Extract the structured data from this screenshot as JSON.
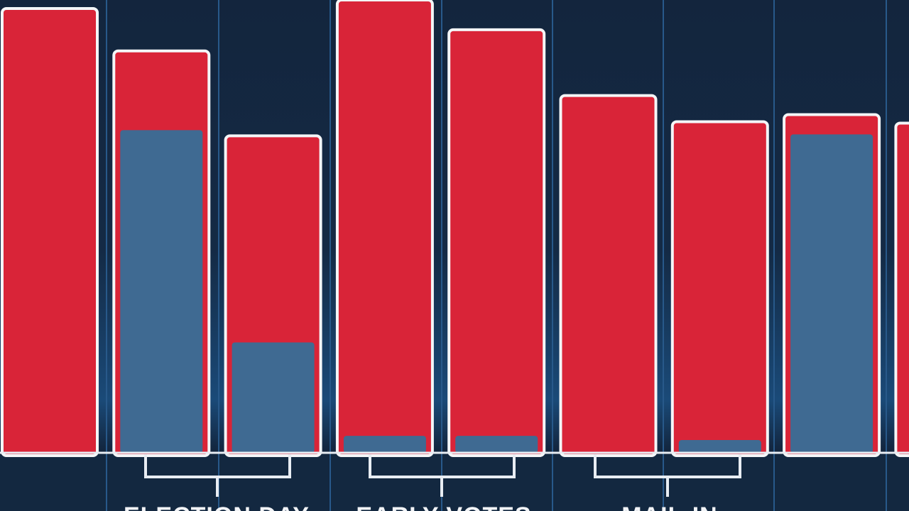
{
  "chart_data": {
    "type": "bar",
    "categories": [
      null,
      null,
      null,
      null,
      null,
      null,
      null,
      null,
      null
    ],
    "series": [
      {
        "color": "#d92438",
        "values": [
          628,
          568,
          448,
          640,
          598,
          505,
          468,
          478,
          466
        ]
      },
      {
        "color": "#3f6a92",
        "values": [
          null,
          456,
          156,
          24,
          24,
          null,
          18,
          450,
          null
        ]
      }
    ],
    "ylim": [
      0,
      640
    ],
    "group_labels": [
      "ELECTION DAY",
      "EARLY VOTES",
      "MAIL-IN"
    ]
  }
}
